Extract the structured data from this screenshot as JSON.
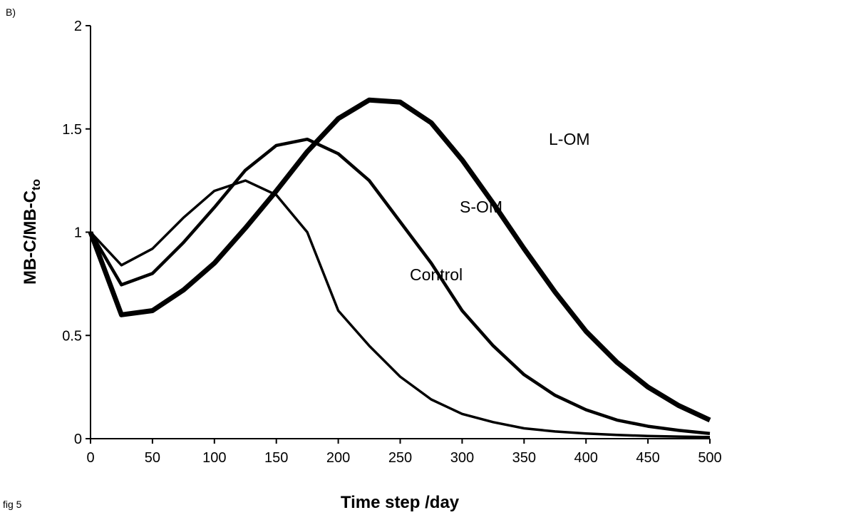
{
  "chart_data": {
    "type": "line",
    "panel_label": "B)",
    "figure_label": "fig 5",
    "xlabel": "Time step /day",
    "ylabel": "MB-C/MB-C",
    "ylabel_subscript": "to",
    "x": [
      0,
      25,
      50,
      75,
      100,
      125,
      150,
      175,
      200,
      225,
      250,
      275,
      300,
      325,
      350,
      375,
      400,
      425,
      450,
      475,
      500
    ],
    "series": [
      {
        "name": "Control",
        "color": "#000000",
        "values": [
          1,
          0.84,
          0.92,
          1.07,
          1.2,
          1.25,
          1.18,
          1.0,
          0.62,
          0.45,
          0.3,
          0.19,
          0.12,
          0.08,
          0.05,
          0.035,
          0.025,
          0.018,
          0.013,
          0.01,
          0.008
        ]
      },
      {
        "name": "S-OM",
        "color": "#000000",
        "values": [
          1,
          0.745,
          0.8,
          0.95,
          1.12,
          1.3,
          1.42,
          1.45,
          1.38,
          1.25,
          1.05,
          0.85,
          0.62,
          0.45,
          0.31,
          0.21,
          0.14,
          0.09,
          0.06,
          0.04,
          0.025
        ]
      },
      {
        "name": "L-OM",
        "color": "#000000",
        "values": [
          1,
          0.6,
          0.62,
          0.72,
          0.85,
          1.02,
          1.2,
          1.39,
          1.55,
          1.64,
          1.63,
          1.53,
          1.35,
          1.14,
          0.92,
          0.71,
          0.52,
          0.37,
          0.25,
          0.16,
          0.09
        ]
      }
    ],
    "xlim": [
      0,
      500
    ],
    "xticks": [
      0,
      50,
      100,
      150,
      200,
      250,
      300,
      350,
      400,
      450,
      500
    ],
    "ylim": [
      0,
      2
    ],
    "yticks": [
      0,
      0.5,
      1,
      1.5,
      2
    ],
    "grid": false
  }
}
